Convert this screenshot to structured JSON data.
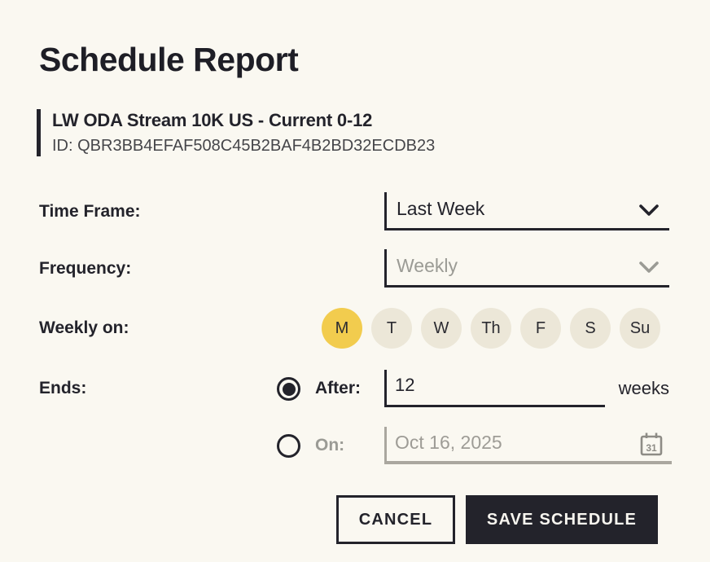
{
  "header": {
    "title": "Schedule Report"
  },
  "report": {
    "name": "LW ODA Stream 10K US - Current 0-12",
    "id": "ID: QBR3BB4EFAF508C45B2BAF4B2BD32ECDB23"
  },
  "form": {
    "time_frame": {
      "label": "Time Frame:",
      "value": "Last Week"
    },
    "frequency": {
      "label": "Frequency:",
      "value": "Weekly",
      "disabled": true
    },
    "weekly_on": {
      "label": "Weekly on:",
      "days": [
        {
          "label": "M",
          "selected": true
        },
        {
          "label": "T",
          "selected": false
        },
        {
          "label": "W",
          "selected": false
        },
        {
          "label": "Th",
          "selected": false
        },
        {
          "label": "F",
          "selected": false
        },
        {
          "label": "S",
          "selected": false
        },
        {
          "label": "Su",
          "selected": false
        }
      ]
    },
    "ends": {
      "label": "Ends:",
      "after": {
        "label": "After:",
        "value": "12",
        "unit": "weeks",
        "selected": true
      },
      "on": {
        "label": "On:",
        "value": "Oct 16, 2025",
        "selected": false
      }
    }
  },
  "actions": {
    "cancel": "CANCEL",
    "save": "SAVE SCHEDULE"
  },
  "colors": {
    "background": "#faf8f1",
    "ink": "#23232b",
    "muted_text": "#9b9b95",
    "selected_day_yellow": "#f2cc4e",
    "day_pill_beige": "#ece7d8",
    "save_button_bg": "#23232b"
  }
}
